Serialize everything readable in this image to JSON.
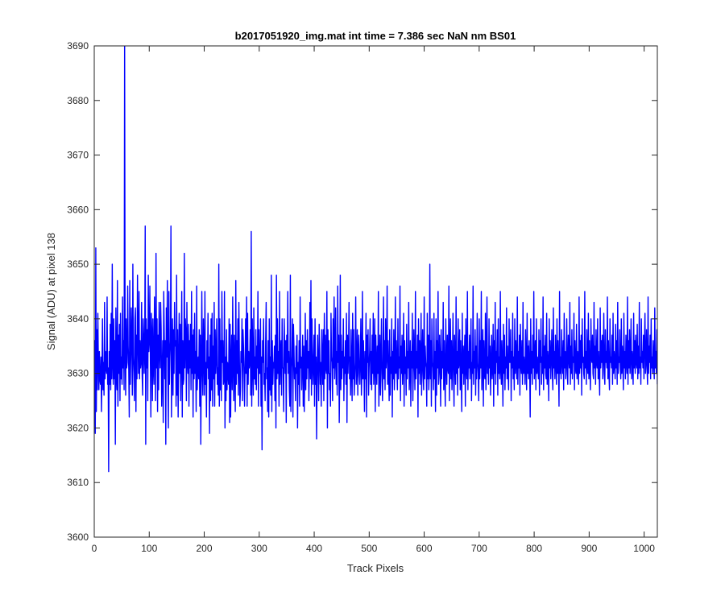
{
  "figure_background": "#ffffff",
  "chart_data": {
    "type": "line",
    "title": "b2017051920_img.mat int time = 7.386 sec  NaN nm BS01",
    "xlabel": "Track Pixels",
    "ylabel": "Signal (ADU) at pixel 138",
    "xlim": [
      0,
      1024
    ],
    "ylim": [
      3600,
      3690
    ],
    "xticks": [
      0,
      100,
      200,
      300,
      400,
      500,
      600,
      700,
      800,
      900,
      1000
    ],
    "yticks": [
      3600,
      3610,
      3620,
      3630,
      3640,
      3650,
      3660,
      3670,
      3680,
      3690
    ],
    "grid": false,
    "box": true,
    "line_color": "#0000ff",
    "series": [
      {
        "values": [
          3630,
          3636,
          3619,
          3653,
          3623,
          3638,
          3627,
          3641,
          3632,
          3627,
          3634,
          3629,
          3628,
          3633,
          3623,
          3630,
          3640,
          3627,
          3632,
          3626,
          3643,
          3629,
          3634,
          3631,
          3630,
          3644,
          3628,
          3631,
          3612,
          3634,
          3628,
          3639,
          3627,
          3641,
          3629,
          3650,
          3632,
          3628,
          3640,
          3629,
          3636,
          3617,
          3642,
          3630,
          3627,
          3647,
          3624,
          3637,
          3630,
          3639,
          3625,
          3641,
          3629,
          3633,
          3628,
          3644,
          3631,
          3636,
          3627,
          3692,
          3634,
          3626,
          3640,
          3631,
          3632,
          3646,
          3635,
          3631,
          3622,
          3647,
          3628,
          3633,
          3642,
          3636,
          3626,
          3650,
          3633,
          3630,
          3625,
          3640,
          3642,
          3623,
          3637,
          3629,
          3648,
          3636,
          3630,
          3645,
          3629,
          3636,
          3631,
          3632,
          3643,
          3630,
          3626,
          3640,
          3637,
          3630,
          3634,
          3657,
          3617,
          3640,
          3631,
          3638,
          3625,
          3648,
          3634,
          3636,
          3646,
          3633,
          3622,
          3641,
          3637,
          3625,
          3640,
          3631,
          3628,
          3644,
          3635,
          3625,
          3652,
          3631,
          3640,
          3623,
          3637,
          3627,
          3643,
          3634,
          3631,
          3643,
          3638,
          3624,
          3630,
          3636,
          3621,
          3645,
          3637,
          3629,
          3636,
          3617,
          3642,
          3633,
          3647,
          3630,
          3620,
          3645,
          3628,
          3633,
          3636,
          3657,
          3622,
          3632,
          3640,
          3626,
          3638,
          3630,
          3643,
          3635,
          3636,
          3624,
          3648,
          3626,
          3638,
          3622,
          3632,
          3641,
          3630,
          3639,
          3625,
          3634,
          3645,
          3622,
          3636,
          3628,
          3629,
          3652,
          3631,
          3640,
          3637,
          3625,
          3643,
          3632,
          3630,
          3639,
          3624,
          3636,
          3631,
          3639,
          3627,
          3645,
          3630,
          3637,
          3622,
          3638,
          3629,
          3641,
          3630,
          3634,
          3623,
          3646,
          3627,
          3631,
          3633,
          3629,
          3638,
          3624,
          3637,
          3617,
          3631,
          3645,
          3630,
          3626,
          3640,
          3634,
          3626,
          3645,
          3628,
          3632,
          3622,
          3636,
          3631,
          3641,
          3629,
          3633,
          3619,
          3637,
          3625,
          3640,
          3627,
          3641,
          3624,
          3635,
          3629,
          3643,
          3624,
          3638,
          3630,
          3633,
          3640,
          3628,
          3631,
          3626,
          3650,
          3624,
          3640,
          3627,
          3636,
          3625,
          3645,
          3632,
          3636,
          3628,
          3629,
          3645,
          3620,
          3633,
          3625,
          3638,
          3627,
          3632,
          3630,
          3628,
          3640,
          3621,
          3639,
          3622,
          3632,
          3637,
          3627,
          3644,
          3632,
          3625,
          3637,
          3631,
          3623,
          3647,
          3628,
          3636,
          3630,
          3640,
          3626,
          3643,
          3633,
          3624,
          3627,
          3634,
          3632,
          3640,
          3625,
          3638,
          3635,
          3630,
          3624,
          3631,
          3640,
          3630,
          3644,
          3624,
          3641,
          3628,
          3634,
          3631,
          3632,
          3638,
          3626,
          3656,
          3624,
          3640,
          3632,
          3626,
          3642,
          3629,
          3633,
          3628,
          3638,
          3627,
          3635,
          3631,
          3645,
          3624,
          3638,
          3630,
          3630,
          3640,
          3624,
          3633,
          3616,
          3636,
          3632,
          3640,
          3628,
          3630,
          3625,
          3636,
          3643,
          3629,
          3631,
          3623,
          3636,
          3622,
          3640,
          3627,
          3633,
          3626,
          3648,
          3623,
          3636,
          3628,
          3632,
          3631,
          3635,
          3625,
          3637,
          3620,
          3648,
          3629,
          3640,
          3630,
          3634,
          3624,
          3645,
          3628,
          3633,
          3636,
          3626,
          3640,
          3631,
          3631,
          3623,
          3640,
          3635,
          3630,
          3636,
          3621,
          3637,
          3632,
          3645,
          3630,
          3634,
          3627,
          3624,
          3648,
          3623,
          3631,
          3633,
          3640,
          3622,
          3639,
          3635,
          3629,
          3631,
          3625,
          3635,
          3630,
          3637,
          3620,
          3632,
          3628,
          3636,
          3624,
          3644,
          3631,
          3633,
          3627,
          3632,
          3637,
          3624,
          3635,
          3623,
          3630,
          3641,
          3627,
          3636,
          3629,
          3638,
          3631,
          3634,
          3625,
          3633,
          3643,
          3629,
          3647,
          3626,
          3640,
          3632,
          3628,
          3633,
          3637,
          3624,
          3640,
          3628,
          3633,
          3618,
          3630,
          3637,
          3631,
          3625,
          3639,
          3634,
          3628,
          3632,
          3624,
          3638,
          3633,
          3628,
          3638,
          3625,
          3641,
          3629,
          3637,
          3631,
          3630,
          3645,
          3620,
          3638,
          3630,
          3636,
          3627,
          3630,
          3624,
          3641,
          3633,
          3632,
          3625,
          3640,
          3631,
          3644,
          3629,
          3633,
          3642,
          3628,
          3634,
          3626,
          3646,
          3632,
          3637,
          3621,
          3630,
          3648,
          3627,
          3637,
          3629,
          3634,
          3631,
          3640,
          3625,
          3633,
          3630,
          3636,
          3628,
          3641,
          3621,
          3637,
          3630,
          3634,
          3643,
          3629,
          3633,
          3626,
          3638,
          3631,
          3625,
          3641,
          3629,
          3638,
          3626,
          3629,
          3632,
          3644,
          3628,
          3631,
          3638,
          3626,
          3634,
          3637,
          3630,
          3628,
          3633,
          3640,
          3626,
          3630,
          3645,
          3629,
          3636,
          3631,
          3623,
          3634,
          3629,
          3641,
          3622,
          3637,
          3632,
          3638,
          3626,
          3631,
          3634,
          3640,
          3628,
          3634,
          3627,
          3637,
          3630,
          3641,
          3628,
          3632,
          3640,
          3623,
          3637,
          3632,
          3628,
          3635,
          3630,
          3645,
          3624,
          3631,
          3637,
          3626,
          3633,
          3640,
          3630,
          3625,
          3632,
          3644,
          3629,
          3636,
          3627,
          3640,
          3631,
          3633,
          3646,
          3628,
          3636,
          3630,
          3625,
          3638,
          3626,
          3633,
          3630,
          3640,
          3622,
          3634,
          3629,
          3638,
          3627,
          3631,
          3644,
          3630,
          3636,
          3631,
          3627,
          3640,
          3629,
          3633,
          3631,
          3646,
          3625,
          3635,
          3630,
          3637,
          3628,
          3632,
          3641,
          3624,
          3636,
          3630,
          3633,
          3626,
          3639,
          3629,
          3634,
          3631,
          3643,
          3627,
          3630,
          3636,
          3624,
          3634,
          3631,
          3641,
          3625,
          3631,
          3638,
          3632,
          3627,
          3645,
          3629,
          3634,
          3631,
          3637,
          3622,
          3640,
          3630,
          3636,
          3628,
          3633,
          3641,
          3626,
          3632,
          3638,
          3630,
          3627,
          3644,
          3629,
          3635,
          3632,
          3631,
          3624,
          3641,
          3629,
          3637,
          3627,
          3631,
          3650,
          3629,
          3636,
          3624,
          3640,
          3632,
          3631,
          3627,
          3641,
          3629,
          3634,
          3623,
          3640,
          3626,
          3636,
          3631,
          3645,
          3628,
          3630,
          3637,
          3632,
          3624,
          3638,
          3629,
          3634,
          3631,
          3643,
          3627,
          3636,
          3630,
          3624,
          3640,
          3632,
          3628,
          3637,
          3631,
          3630,
          3646,
          3625,
          3633,
          3640,
          3629,
          3636,
          3627,
          3632,
          3641,
          3630,
          3624,
          3637,
          3633,
          3628,
          3644,
          3630,
          3634,
          3626,
          3640,
          3631,
          3632,
          3638,
          3627,
          3636,
          3630,
          3623,
          3641,
          3630,
          3635,
          3628,
          3633,
          3637,
          3624,
          3640,
          3631,
          3629,
          3645,
          3627,
          3634,
          3631,
          3637,
          3629,
          3633,
          3640,
          3625,
          3632,
          3630,
          3646,
          3628,
          3634,
          3631,
          3638,
          3626,
          3635,
          3629,
          3641,
          3632,
          3630,
          3625,
          3640,
          3629,
          3636,
          3631,
          3645,
          3627,
          3632,
          3638,
          3624,
          3636,
          3630,
          3629,
          3641,
          3627,
          3633,
          3644,
          3630,
          3633,
          3628,
          3640,
          3631,
          3635,
          3626,
          3632,
          3637,
          3629,
          3631,
          3639,
          3624,
          3636,
          3630,
          3643,
          3628,
          3634,
          3632,
          3638,
          3626,
          3640,
          3630,
          3633,
          3629,
          3645,
          3631,
          3628,
          3636,
          3632,
          3624,
          3639,
          3630,
          3637,
          3627,
          3633,
          3631,
          3642,
          3629,
          3635,
          3630,
          3627,
          3640,
          3632,
          3632,
          3638,
          3625,
          3634,
          3631,
          3641,
          3629,
          3633,
          3627,
          3640,
          3630,
          3636,
          3632,
          3629,
          3644,
          3628,
          3634,
          3631,
          3637,
          3626,
          3639,
          3632,
          3630,
          3636,
          3628,
          3643,
          3630,
          3633,
          3631,
          3628,
          3638,
          3632,
          3627,
          3641,
          3630,
          3635,
          3629,
          3636,
          3631,
          3622,
          3640,
          3630,
          3634,
          3628,
          3637,
          3631,
          3645,
          3629,
          3632,
          3636,
          3627,
          3640,
          3630,
          3633,
          3631,
          3629,
          3638,
          3626,
          3636,
          3632,
          3640,
          3628,
          3633,
          3630,
          3644,
          3627,
          3635,
          3631,
          3637,
          3630,
          3629,
          3641,
          3628,
          3634,
          3632,
          3625,
          3640,
          3631,
          3636,
          3629,
          3633,
          3638,
          3630,
          3627,
          3642,
          3631,
          3634,
          3629,
          3637,
          3632,
          3628,
          3640,
          3630,
          3636,
          3631,
          3624,
          3645,
          3630,
          3633,
          3629,
          3638,
          3632,
          3630,
          3636,
          3627,
          3641,
          3631,
          3634,
          3629,
          3632,
          3640,
          3630,
          3628,
          3637,
          3633,
          3631,
          3643,
          3628,
          3635,
          3630,
          3638,
          3629,
          3633,
          3632,
          3641,
          3627,
          3636,
          3631,
          3630,
          3639,
          3629,
          3634,
          3632,
          3628,
          3644,
          3630,
          3636,
          3631,
          3637,
          3626,
          3640,
          3632,
          3633,
          3630,
          3629,
          3645,
          3631,
          3634,
          3628,
          3638,
          3632,
          3630,
          3641,
          3629,
          3636,
          3631,
          3627,
          3640,
          3633,
          3632,
          3637,
          3630,
          3629,
          3643,
          3631,
          3635,
          3628,
          3638,
          3632,
          3631,
          3640,
          3629,
          3634,
          3630,
          3626,
          3642,
          3631,
          3636,
          3632,
          3637,
          3629,
          3633,
          3641,
          3630,
          3628,
          3638,
          3632,
          3634,
          3631,
          3644,
          3629,
          3636,
          3630,
          3627,
          3640,
          3632,
          3633,
          3631,
          3637,
          3628,
          3641,
          3630,
          3634,
          3632,
          3629,
          3639,
          3631,
          3636,
          3628,
          3643,
          3630,
          3633,
          3632,
          3638,
          3631,
          3629,
          3640,
          3630,
          3635,
          3632,
          3627,
          3641,
          3631,
          3634,
          3629,
          3637,
          3632,
          3630,
          3644,
          3628,
          3636,
          3631,
          3638,
          3630,
          3633,
          3640,
          3629,
          3634,
          3632,
          3628,
          3641,
          3631,
          3636,
          3630,
          3637,
          3632,
          3631,
          3639,
          3629,
          3635,
          3630,
          3643,
          3631,
          3633,
          3628,
          3640,
          3632,
          3634,
          3631,
          3637,
          3629,
          3636,
          3641,
          3630,
          3632,
          3638,
          3631,
          3628,
          3644,
          3630,
          3635,
          3632,
          3637,
          3629,
          3640,
          3631,
          3633,
          3630,
          3636,
          3632,
          3629,
          3642,
          3631,
          3634,
          3630,
          3638,
          3628
        ]
      }
    ]
  }
}
